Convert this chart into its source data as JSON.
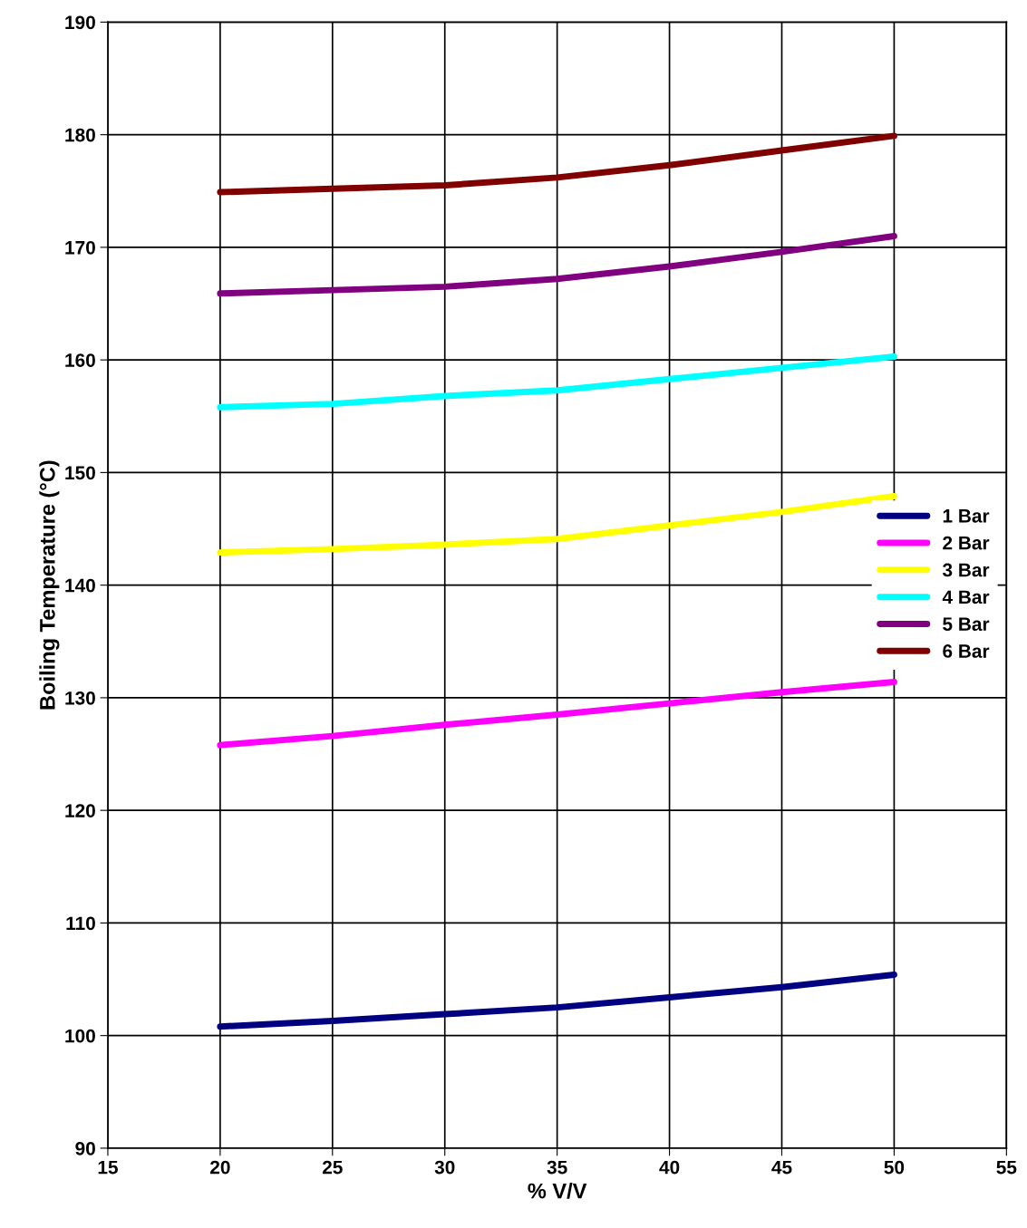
{
  "chart_data": {
    "type": "line",
    "xlabel": "% V/V",
    "ylabel": "Boiling Temperature (°C)",
    "x": [
      20,
      25,
      30,
      35,
      40,
      45,
      50
    ],
    "xlim": [
      15,
      55
    ],
    "xticks": [
      15,
      20,
      25,
      30,
      35,
      40,
      45,
      50,
      55
    ],
    "ylim": [
      90,
      190
    ],
    "yticks": [
      90,
      100,
      110,
      120,
      130,
      140,
      150,
      160,
      170,
      180,
      190
    ],
    "grid": true,
    "legend": "right",
    "marker": "none",
    "line_style": "solid",
    "series": [
      {
        "name": "1 Bar",
        "color": "#000080",
        "values": [
          100.8,
          101.3,
          101.9,
          102.5,
          103.4,
          104.3,
          105.4
        ]
      },
      {
        "name": "2 Bar",
        "color": "#ff00ff",
        "values": [
          125.8,
          126.6,
          127.6,
          128.5,
          129.5,
          130.5,
          131.4
        ]
      },
      {
        "name": "3 Bar",
        "color": "#ffff00",
        "values": [
          142.9,
          143.2,
          143.6,
          144.1,
          145.3,
          146.5,
          147.9
        ]
      },
      {
        "name": "4 Bar",
        "color": "#00ffff",
        "values": [
          155.8,
          156.1,
          156.8,
          157.3,
          158.3,
          159.3,
          160.3
        ]
      },
      {
        "name": "5 Bar",
        "color": "#800080",
        "values": [
          165.9,
          166.2,
          166.5,
          167.2,
          168.3,
          169.6,
          171.0
        ]
      },
      {
        "name": "6 Bar",
        "color": "#800000",
        "values": [
          174.9,
          175.2,
          175.5,
          176.2,
          177.3,
          178.6,
          179.9
        ]
      }
    ]
  }
}
